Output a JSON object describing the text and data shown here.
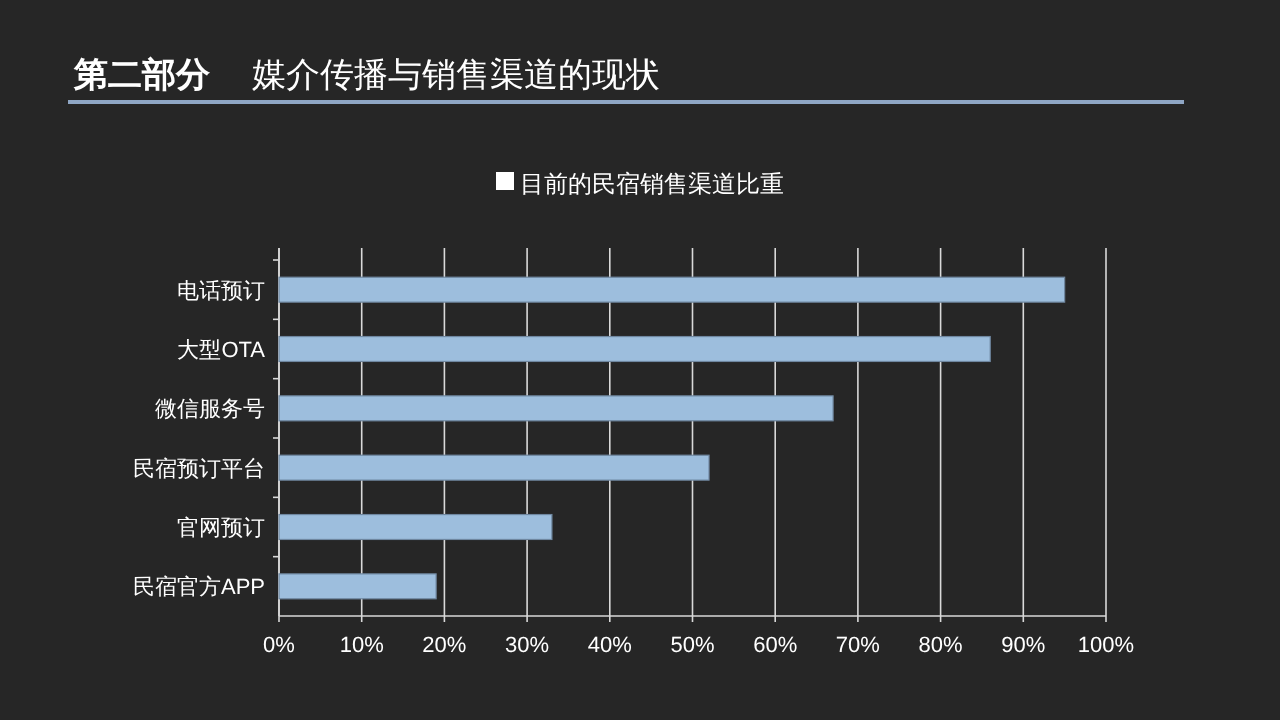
{
  "chart_data": {
    "type": "bar",
    "title": "第二部分",
    "subtitle": "媒介传播与销售渠道的现状",
    "orientation": "horizontal",
    "categories": [
      "电话预订",
      "大型OTA",
      "微信服务号",
      "民宿预订平台",
      "官网预订",
      "民宿官方APP"
    ],
    "series": [
      {
        "name": "目前的民宿销售渠道比重",
        "color": "#9dbedd",
        "values": [
          95,
          86,
          67,
          52,
          33,
          19
        ]
      }
    ],
    "xlim": [
      0,
      100
    ],
    "xticks": [
      {
        "value": 0,
        "label": "0%"
      },
      {
        "value": 10,
        "label": "10%"
      },
      {
        "value": 20,
        "label": "20%"
      },
      {
        "value": 30,
        "label": "30%"
      },
      {
        "value": 40,
        "label": "40%"
      },
      {
        "value": 50,
        "label": "50%"
      },
      {
        "value": 60,
        "label": "60%"
      },
      {
        "value": 70,
        "label": "70%"
      },
      {
        "value": 80,
        "label": "80%"
      },
      {
        "value": 90,
        "label": "90%"
      },
      {
        "value": 100,
        "label": "100%"
      }
    ],
    "grid": "x",
    "legend": "top"
  }
}
